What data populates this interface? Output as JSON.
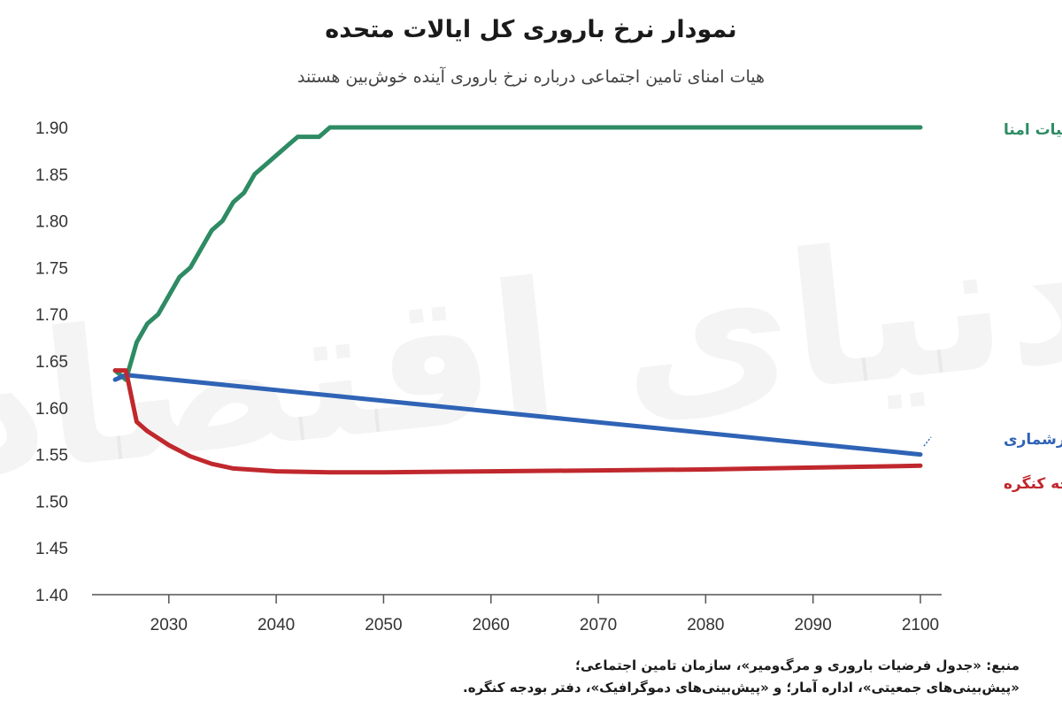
{
  "title": "نمودار نرخ باروری کل ایالات متحده",
  "subtitle": "هیات امنای تامین اجتماعی درباره نرخ باروری آینده خوش‌بین هستند",
  "watermark": "دنیای اقتصاد",
  "source": {
    "line1": "منبع: «جدول فرضیات باروری و مرگ‌ومیر»، سازمان تامین اجتماعی؛",
    "line2": "«پیش‌بینی‌های جمعیتی»، اداره آمار؛ و «پیش‌بینی‌های دموگرافیک»، دفتر بودجه کنگره."
  },
  "chart_data": {
    "type": "line",
    "title": "نمودار نرخ باروری کل ایالات متحده",
    "subtitle": "هیات امنای تامین اجتماعی درباره نرخ باروری آینده خوش‌بین هستند",
    "xlabel": "",
    "ylabel": "",
    "xlim": [
      2024,
      2100
    ],
    "ylim": [
      1.4,
      1.9
    ],
    "xticks": [
      2030,
      2040,
      2050,
      2060,
      2070,
      2080,
      2090,
      2100
    ],
    "yticks": [
      "1.90",
      "1.85",
      "1.80",
      "1.75",
      "1.70",
      "1.65",
      "1.60",
      "1.55",
      "1.50",
      "1.45",
      "1.40"
    ],
    "grid": false,
    "series": [
      {
        "name": "هیات امنا",
        "color": "#2e8b63",
        "x": [
          2025,
          2026,
          2027,
          2028,
          2029,
          2030,
          2031,
          2032,
          2033,
          2034,
          2035,
          2036,
          2037,
          2038,
          2039,
          2040,
          2041,
          2042,
          2043,
          2044,
          2045,
          2050,
          2060,
          2070,
          2080,
          2090,
          2100
        ],
        "y": [
          1.64,
          1.63,
          1.67,
          1.69,
          1.7,
          1.72,
          1.74,
          1.75,
          1.77,
          1.79,
          1.8,
          1.82,
          1.83,
          1.85,
          1.86,
          1.87,
          1.88,
          1.89,
          1.89,
          1.89,
          1.9,
          1.9,
          1.9,
          1.9,
          1.9,
          1.9,
          1.9
        ]
      },
      {
        "name": "سرشماری",
        "color": "#2f63b5",
        "x": [
          2025,
          2026,
          2100
        ],
        "y": [
          1.63,
          1.635,
          1.55
        ]
      },
      {
        "name": "دفتر بودجه کنگره",
        "color": "#c0282d",
        "x": [
          2025,
          2026,
          2027,
          2028,
          2030,
          2032,
          2034,
          2036,
          2040,
          2045,
          2050,
          2060,
          2070,
          2080,
          2090,
          2100
        ],
        "y": [
          1.64,
          1.64,
          1.585,
          1.575,
          1.56,
          1.548,
          1.54,
          1.535,
          1.532,
          1.531,
          1.531,
          1.532,
          1.533,
          1.534,
          1.536,
          1.538
        ]
      }
    ]
  }
}
